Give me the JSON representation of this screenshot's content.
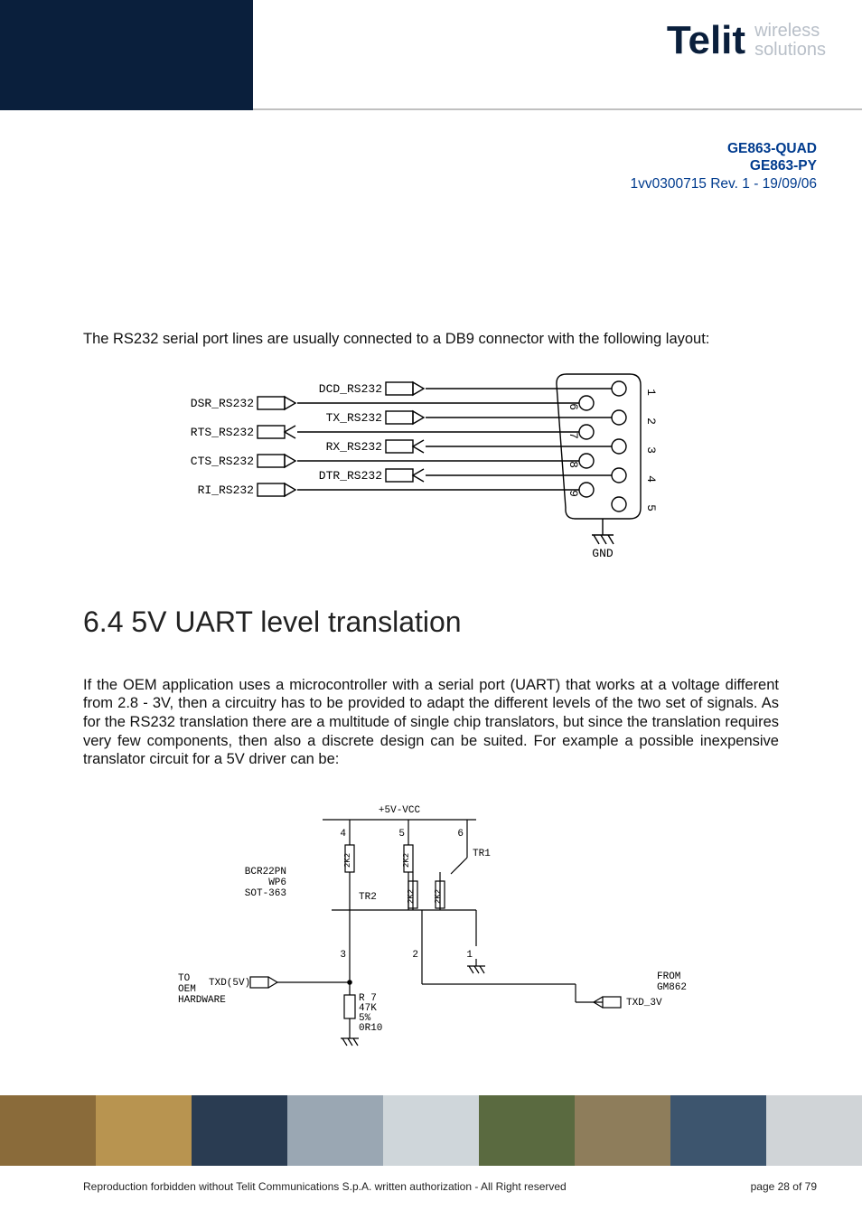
{
  "logo": {
    "name": "Telit",
    "tagline_line1": "wireless",
    "tagline_line2": "solutions"
  },
  "doc_id": {
    "line1": "GE863-QUAD",
    "line2": "GE863-PY",
    "line3": "1vv0300715 Rev. 1 - 19/09/06"
  },
  "intro": "The RS232 serial port lines are usually connected to a DB9 connector with the following layout:",
  "section_number": "6.4",
  "section_title": "5V UART level translation",
  "body": "If the OEM application uses a microcontroller with a serial port (UART)  that works at a voltage different from 2.8 - 3V, then a circuitry has to be provided to adapt the different levels of the two set of signals. As for the RS232 translation there are a multitude of single chip translators, but since the translation requires very few components, then also a discrete design can be suited. For example a possible inexpensive translator circuit for a 5V driver can be:",
  "footer": {
    "left": "Reproduction forbidden without Telit Communications S.p.A. written authorization - All Right reserved",
    "right": "page 28 of 79"
  },
  "db9": {
    "left_col": [
      "DSR_RS232",
      "RTS_RS232",
      "CTS_RS232",
      "RI_RS232"
    ],
    "right_col": [
      "DCD_RS232",
      "TX_RS232",
      "RX_RS232",
      "DTR_RS232"
    ],
    "left_dirs": [
      "out",
      "in",
      "out",
      "out"
    ],
    "right_dirs": [
      "out",
      "out",
      "in",
      "in"
    ],
    "pin_inner": [
      "6",
      "7",
      "8",
      "9"
    ],
    "pin_outer": [
      "1",
      "2",
      "3",
      "4",
      "5"
    ],
    "gnd": "GND",
    "colors": {
      "stroke": "#000000",
      "text": "#000000"
    },
    "pin_radius": 8,
    "line_width": 1.4,
    "text_fontsize": 13
  },
  "circuit": {
    "title_top": "+5V-VCC",
    "nodes_top": [
      "4",
      "5",
      "6"
    ],
    "nodes_mid": [
      "3",
      "2",
      "1"
    ],
    "res_r": [
      "2K2",
      "2K2",
      "2K2",
      "2K2"
    ],
    "tr_labels": [
      "TR1",
      "TR2"
    ],
    "chip": [
      "BCR22PN",
      "WP6",
      "SOT-363"
    ],
    "left_block": [
      "TO",
      "OEM",
      "HARDWARE"
    ],
    "right_block": [
      "FROM",
      "GM862"
    ],
    "txd5v": "TXD(5V)",
    "txd3v": "TXD_3V",
    "r7": [
      "R 7",
      "47K",
      "5%",
      "0R10"
    ],
    "colors": {
      "stroke": "#000000",
      "text": "#000000"
    },
    "line_width": 1.2,
    "text_fontsize": 11
  },
  "footer_strip_colors": [
    "#8a6b3a",
    "#b89450",
    "#2a3c52",
    "#9aa7b3",
    "#cfd6da",
    "#5a6a40",
    "#8e7d5b",
    "#3d556e",
    "#d0d4d7"
  ]
}
